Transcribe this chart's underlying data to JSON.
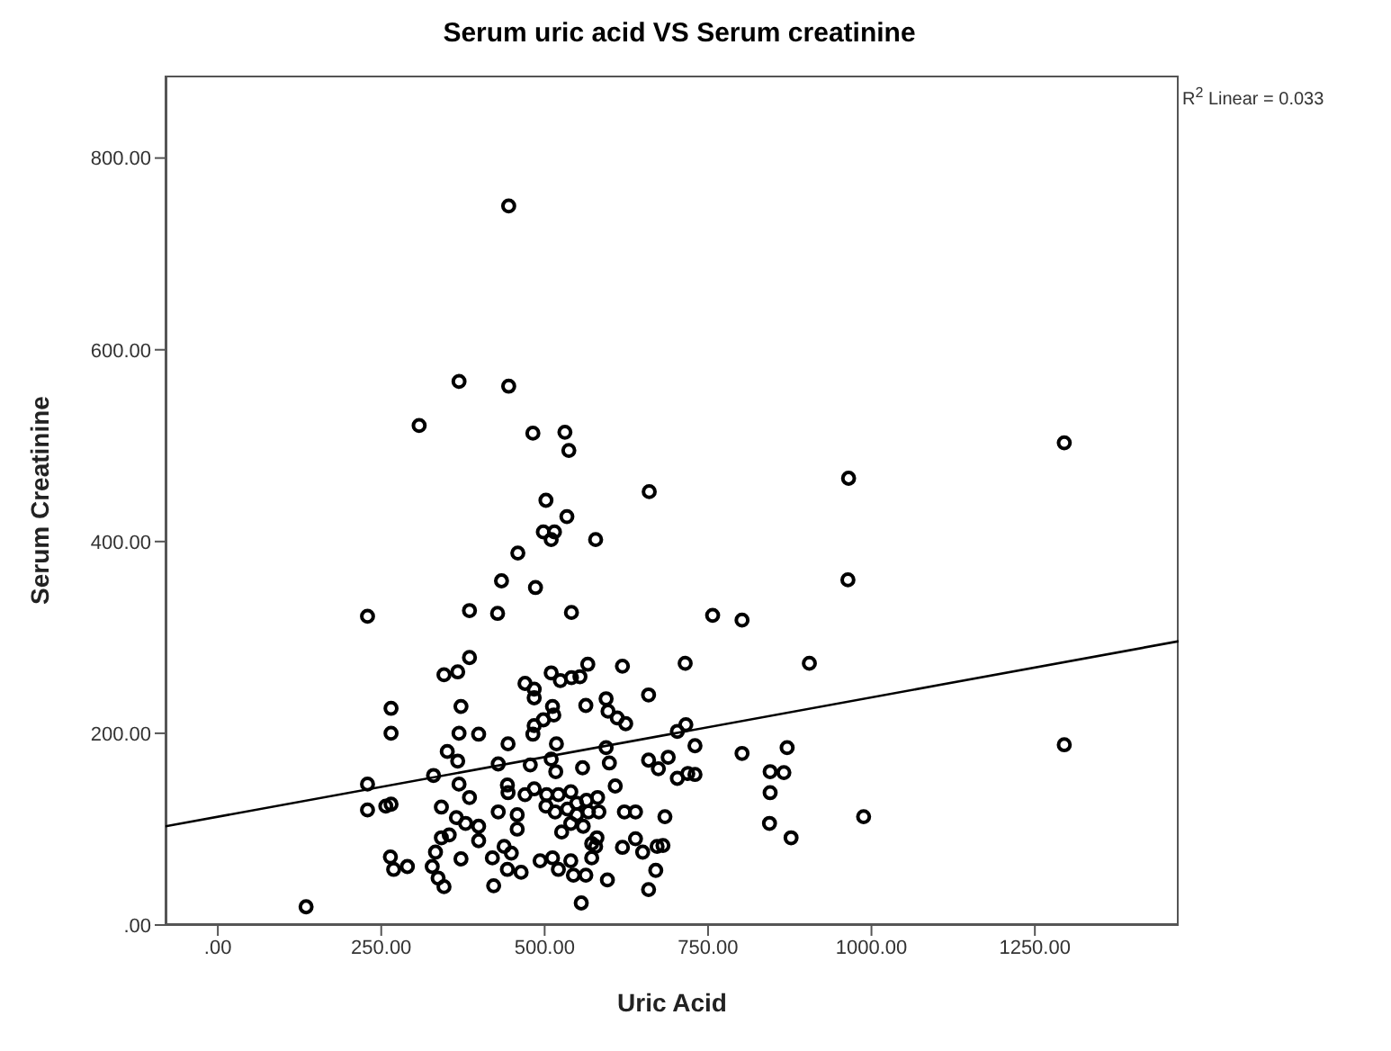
{
  "chart_data": {
    "type": "scatter",
    "title": "Serum uric acid VS Serum creatinine",
    "xlabel": "Uric Acid",
    "ylabel": "Serum Creatinine",
    "annotations": [
      "R$^{2}$ Linear = 0.033"
    ],
    "xlim": [
      -80,
      1470
    ],
    "ylim": [
      0,
      886
    ],
    "xticks": [
      {
        "value": 0,
        "label": ".00"
      },
      {
        "value": 250,
        "label": "250.00"
      },
      {
        "value": 500,
        "label": "500.00"
      },
      {
        "value": 750,
        "label": "750.00"
      },
      {
        "value": 1000,
        "label": "1000.00"
      },
      {
        "value": 1250,
        "label": "1250.00"
      }
    ],
    "yticks": [
      {
        "value": 0,
        "label": ".00"
      },
      {
        "value": 200,
        "label": "200.00"
      },
      {
        "value": 400,
        "label": "400.00"
      },
      {
        "value": 600,
        "label": "600.00"
      },
      {
        "value": 800,
        "label": "800.00"
      }
    ],
    "series": [
      {
        "marker": "circle",
        "color": "#000000",
        "x": [
          445,
          369,
          445,
          308,
          482,
          531,
          537,
          1295,
          965,
          502,
          660,
          534,
          498,
          515,
          510,
          578,
          459,
          434,
          486,
          229,
          385,
          428,
          541,
          757,
          802,
          385,
          346,
          367,
          470,
          484,
          510,
          524,
          541,
          554,
          566,
          619,
          715,
          905,
          484,
          265,
          372,
          512,
          498,
          484,
          514,
          482,
          563,
          594,
          597,
          611,
          624,
          659,
          265,
          369,
          399,
          444,
          518,
          594,
          703,
          716,
          730,
          802,
          871,
          351,
          367,
          330,
          429,
          478,
          510,
          517,
          558,
          599,
          659,
          674,
          689,
          703,
          719,
          730,
          229,
          229,
          257,
          265,
          369,
          385,
          443,
          444,
          470,
          484,
          503,
          521,
          540,
          549,
          564,
          581,
          608,
          845,
          866,
          845,
          342,
          365,
          379,
          399,
          429,
          458,
          502,
          516,
          535,
          549,
          567,
          583,
          622,
          639,
          684,
          844,
          342,
          354,
          399,
          458,
          526,
          540,
          559,
          572,
          580,
          619,
          639,
          650,
          672,
          681,
          877,
          264,
          269,
          290,
          333,
          328,
          337,
          346,
          372,
          420,
          438,
          449,
          443,
          464,
          422,
          493,
          512,
          521,
          540,
          544,
          563,
          572,
          578,
          596,
          670,
          659,
          556,
          964,
          1295,
          988,
          135
        ],
        "values": [
          750,
          567,
          562,
          521,
          513,
          514,
          495,
          503,
          466,
          443,
          452,
          426,
          410,
          410,
          402,
          402,
          388,
          359,
          352,
          322,
          328,
          325,
          326,
          323,
          318,
          279,
          261,
          264,
          252,
          246,
          263,
          255,
          258,
          259,
          272,
          270,
          273,
          273,
          237,
          226,
          228,
          228,
          214,
          208,
          219,
          199,
          229,
          236,
          223,
          216,
          210,
          240,
          200,
          200,
          199,
          189,
          189,
          185,
          202,
          209,
          187,
          179,
          185,
          181,
          171,
          156,
          168,
          167,
          173,
          160,
          164,
          169,
          172,
          163,
          175,
          153,
          158,
          157,
          147,
          120,
          124,
          126,
          147,
          133,
          146,
          138,
          136,
          142,
          136,
          136,
          139,
          127,
          130,
          133,
          145,
          160,
          159,
          138,
          123,
          112,
          106,
          103,
          118,
          115,
          124,
          118,
          121,
          115,
          118,
          118,
          118,
          118,
          113,
          106,
          91,
          94,
          88,
          100,
          97,
          106,
          103,
          85,
          91,
          81,
          90,
          76,
          82,
          83,
          91,
          71,
          58,
          61,
          76,
          61,
          49,
          40,
          69,
          70,
          82,
          75,
          58,
          55,
          41,
          67,
          70,
          58,
          67,
          52,
          52,
          70,
          82,
          47,
          57,
          37,
          23,
          360,
          188,
          113,
          19
        ]
      },
      {
        "type": "line",
        "color": "#000000",
        "x": [
          -80,
          1470
        ],
        "values": [
          103,
          296
        ]
      }
    ]
  }
}
